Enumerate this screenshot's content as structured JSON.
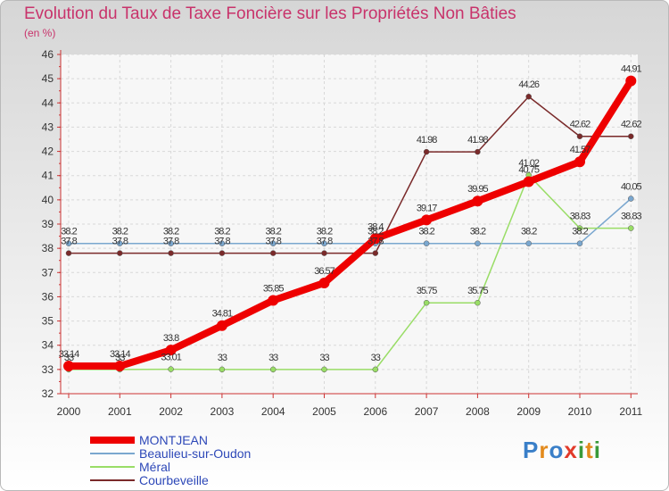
{
  "title": "Evolution du Taux de Taxe Foncière sur les Propriétés Non Bâties",
  "subtitle": "(en %)",
  "logo": "Proxiti",
  "chart_data": {
    "type": "line",
    "title": "Evolution du Taux de Taxe Foncière sur les Propriétés Non Bâties",
    "ylabel": "(en %)",
    "xlabel": "",
    "x": [
      "2000",
      "2001",
      "2002",
      "2003",
      "2004",
      "2005",
      "2006",
      "2007",
      "2008",
      "2009",
      "2010",
      "2011"
    ],
    "ylim": [
      32,
      46
    ],
    "yticks": [
      32,
      33,
      34,
      35,
      36,
      37,
      38,
      39,
      40,
      41,
      42,
      43,
      44,
      45,
      46
    ],
    "grid": true,
    "legend_position": "bottom-left",
    "series": [
      {
        "name": "MONTJEAN",
        "color": "#ee0000",
        "values": [
          33.14,
          33.14,
          33.8,
          34.81,
          35.85,
          36.57,
          38.4,
          39.17,
          39.95,
          40.75,
          41.57,
          44.91
        ],
        "labels": [
          "33.14",
          "33.14",
          "33.8",
          "34.81",
          "35.85",
          "36.57",
          "38.4",
          "39.17",
          "39.95",
          "40.75",
          "41.57",
          "44.91"
        ]
      },
      {
        "name": "Beaulieu-sur-Oudon",
        "color": "#7aa7cf",
        "values": [
          38.2,
          38.2,
          38.2,
          38.2,
          38.2,
          38.2,
          38.2,
          38.2,
          38.2,
          38.2,
          38.2,
          40.05
        ],
        "labels": [
          "38.2",
          "38.2",
          "38.2",
          "38.2",
          "38.2",
          "38.2",
          "38.2",
          "38.2",
          "38.2",
          "38.2",
          "38.2",
          "40.05"
        ]
      },
      {
        "name": "Méral",
        "color": "#99dd66",
        "values": [
          33,
          33,
          33.01,
          33,
          33,
          33,
          33,
          35.75,
          35.75,
          41.02,
          38.83,
          38.83
        ],
        "labels": [
          "33",
          "33",
          "33.01",
          "33",
          "33",
          "33",
          "33",
          "35.75",
          "35.75",
          "41.02",
          "38.83",
          "38.83"
        ]
      },
      {
        "name": "Courbeveille",
        "color": "#7a2a2a",
        "values": [
          37.8,
          37.8,
          37.8,
          37.8,
          37.8,
          37.8,
          37.8,
          41.98,
          41.98,
          44.26,
          42.62,
          42.62
        ],
        "labels": [
          "37.8",
          "37.8",
          "37.8",
          "37.8",
          "37.8",
          "37.8",
          "37.8",
          "41.98",
          "41.98",
          "44.26",
          "42.62",
          "42.62"
        ]
      }
    ]
  }
}
